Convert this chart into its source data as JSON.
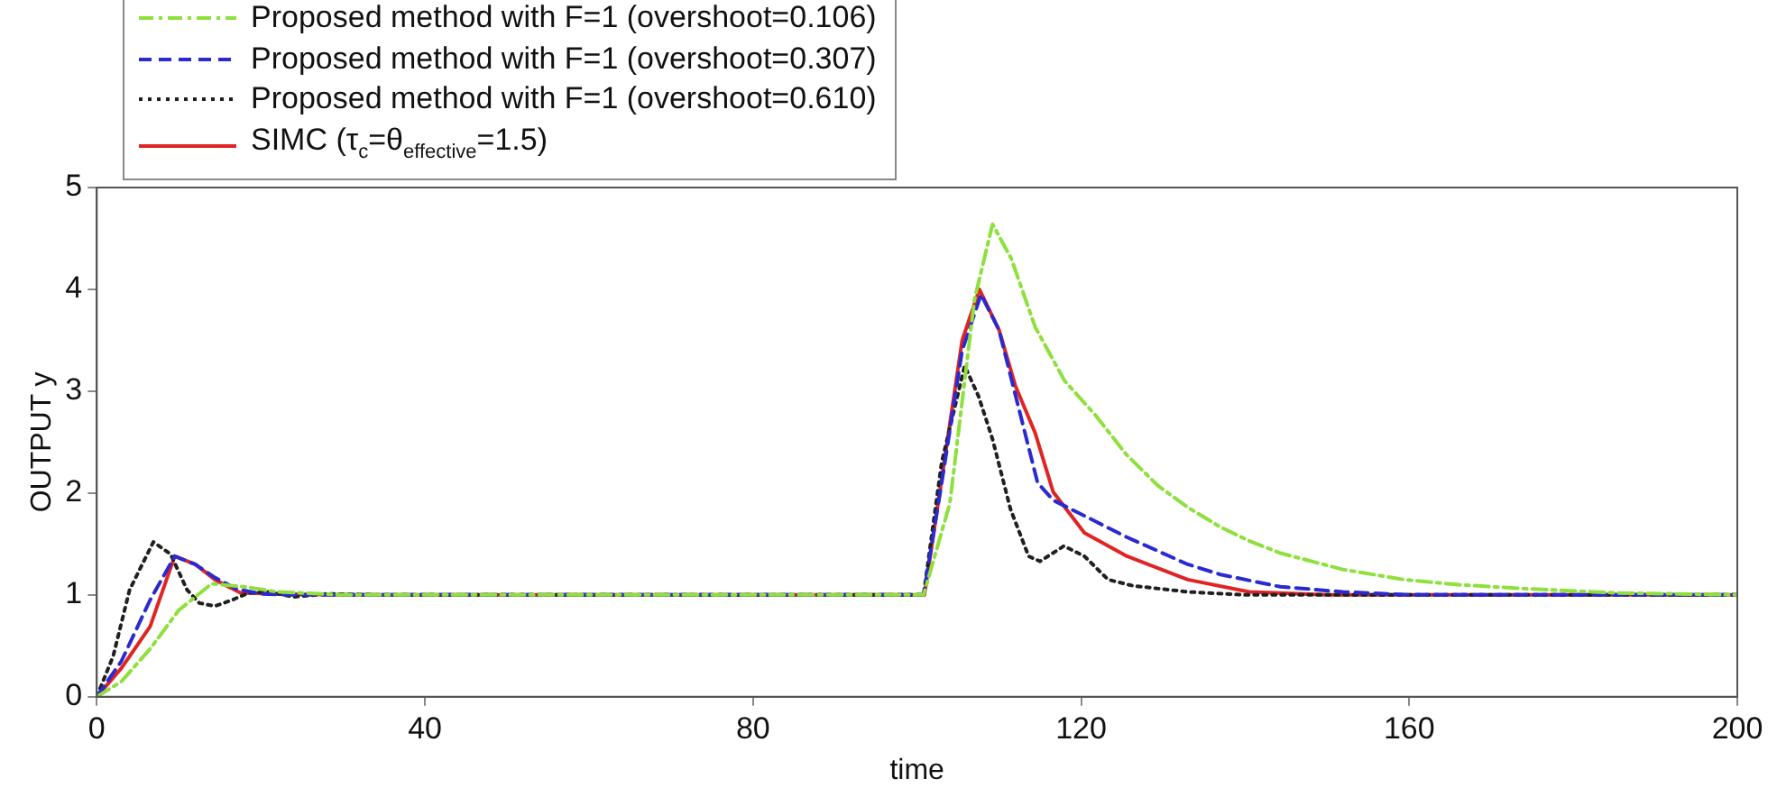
{
  "chart_data": {
    "type": "line",
    "xlabel": "time",
    "ylabel": "OUTPUT y",
    "xlim": [
      0,
      200
    ],
    "ylim": [
      0,
      5
    ],
    "xticks": [
      0,
      40,
      80,
      120,
      160,
      200
    ],
    "yticks": [
      0,
      1,
      2,
      3,
      4,
      5
    ],
    "grid": false,
    "legend": "top left",
    "marker": "none",
    "series": [
      {
        "name": "Proposed method with F=1 (overshoot=0.106)",
        "color": "#8ee03c",
        "line_style": "dashdot",
        "x": [
          0,
          3,
          6.5,
          10,
          14,
          18,
          22,
          30,
          40,
          100,
          100.8,
          104,
          107,
          109.2,
          111.5,
          114.4,
          118,
          121.8,
          125.5,
          129.4,
          133,
          136.9,
          140.5,
          144.3,
          151.9,
          159.4,
          166,
          174.4,
          185,
          200
        ],
        "values": [
          0,
          0.15,
          0.47,
          0.85,
          1.11,
          1.08,
          1.03,
          1,
          1,
          1,
          1,
          1.9,
          3.9,
          4.64,
          4.3,
          3.63,
          3.1,
          2.76,
          2.38,
          2.07,
          1.86,
          1.67,
          1.53,
          1.41,
          1.25,
          1.15,
          1.1,
          1.06,
          1.02,
          1
        ]
      },
      {
        "name": "Proposed method with F=1 (overshoot=0.307)",
        "color": "#2a2ad0",
        "line_style": "dashed",
        "x": [
          0,
          3,
          6.5,
          9.5,
          12,
          14.4,
          17,
          20,
          24,
          30,
          40,
          100,
          100.8,
          103.1,
          105.5,
          107.8,
          110,
          112.5,
          114.7,
          116.6,
          121.8,
          125.5,
          129.4,
          133,
          137,
          144.3,
          151.9,
          160,
          200
        ],
        "values": [
          0,
          0.35,
          0.95,
          1.38,
          1.3,
          1.17,
          1.06,
          1.01,
          1,
          1,
          1,
          1,
          1,
          2.15,
          3.4,
          3.95,
          3.6,
          2.8,
          2.1,
          1.93,
          1.72,
          1.57,
          1.43,
          1.3,
          1.2,
          1.08,
          1.03,
          1,
          1
        ]
      },
      {
        "name": "Proposed method with F=1 (overshoot=0.610)",
        "color": "#202020",
        "line_style": "dotted",
        "x": [
          0,
          2,
          4,
          6.9,
          9,
          11,
          12.5,
          14.4,
          16.5,
          18.5,
          21,
          24,
          28,
          35,
          40,
          100,
          100.8,
          103,
          105.8,
          107.5,
          109.2,
          111.4,
          113.6,
          115,
          117.9,
          120.4,
          123.3,
          126.3,
          133,
          140,
          200
        ],
        "values": [
          0,
          0.4,
          1.05,
          1.52,
          1.4,
          1.05,
          0.92,
          0.89,
          0.95,
          1.02,
          1.03,
          0.98,
          1.01,
          1,
          1,
          1,
          1,
          2.3,
          3.25,
          2.95,
          2.53,
          1.84,
          1.38,
          1.33,
          1.48,
          1.38,
          1.15,
          1.09,
          1.03,
          1,
          1
        ]
      },
      {
        "name": "SIMC (τ$_{c}$=θ$_{effective}$=1.5)",
        "color": "#e02424",
        "line_style": "solid",
        "x": [
          0,
          3,
          6.5,
          9.5,
          12,
          14.4,
          17.5,
          22,
          30,
          40,
          100,
          100.9,
          103.1,
          105.5,
          107.6,
          110,
          112,
          114.4,
          116.6,
          120.4,
          125.6,
          133,
          140.5,
          150,
          200
        ],
        "values": [
          0,
          0.28,
          0.69,
          1.38,
          1.3,
          1.15,
          1.02,
          1.01,
          1,
          1,
          1,
          1,
          2.19,
          3.5,
          4.0,
          3.6,
          3.05,
          2.59,
          2.01,
          1.61,
          1.38,
          1.15,
          1.03,
          1,
          1
        ]
      }
    ]
  }
}
